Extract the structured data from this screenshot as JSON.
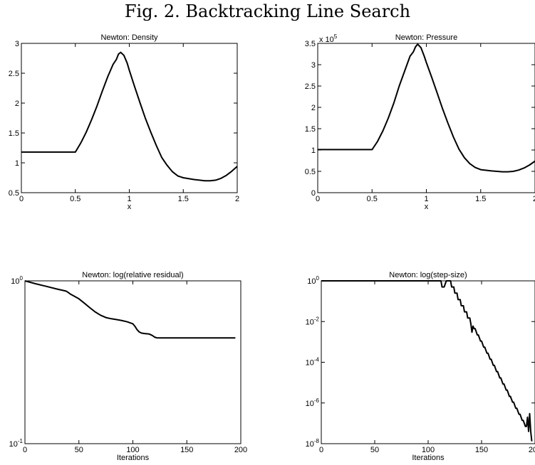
{
  "figure_title": "Fig. 2. Backtracking Line Search",
  "chart_data": [
    {
      "type": "line",
      "title": "Newton:  Density",
      "xlabel": "x",
      "ylabel": "",
      "xlim": [
        0,
        2
      ],
      "ylim": [
        0.5,
        3
      ],
      "yscale": "linear",
      "xticks": [
        0,
        0.5,
        1,
        1.5,
        2
      ],
      "xtick_labels": [
        "0",
        "0.5",
        "1",
        "1.5",
        "2"
      ],
      "yticks": [
        0.5,
        1,
        1.5,
        2,
        2.5,
        3
      ],
      "ytick_labels": [
        "0.5",
        "1",
        "1.5",
        "2",
        "2.5",
        "3"
      ],
      "series": [
        {
          "x": [
            0,
            0.25,
            0.5,
            0.55,
            0.6,
            0.65,
            0.7,
            0.75,
            0.8,
            0.85,
            0.88,
            0.9,
            0.92,
            0.95,
            0.98,
            1.0,
            1.05,
            1.1,
            1.15,
            1.2,
            1.25,
            1.3,
            1.35,
            1.4,
            1.45,
            1.5,
            1.6,
            1.7,
            1.75,
            1.8,
            1.85,
            1.9,
            1.95,
            2.0
          ],
          "y": [
            1.18,
            1.18,
            1.18,
            1.33,
            1.51,
            1.72,
            1.95,
            2.2,
            2.44,
            2.65,
            2.73,
            2.82,
            2.85,
            2.8,
            2.67,
            2.55,
            2.27,
            2.0,
            1.74,
            1.51,
            1.29,
            1.09,
            0.96,
            0.85,
            0.78,
            0.75,
            0.72,
            0.7,
            0.7,
            0.71,
            0.74,
            0.79,
            0.86,
            0.94
          ]
        }
      ]
    },
    {
      "type": "line",
      "title": "Newton:  Pressure",
      "xlabel": "x",
      "ylabel": "",
      "multiplier_label": "x 10",
      "multiplier_exponent": "5",
      "xlim": [
        0,
        2
      ],
      "ylim": [
        0,
        3.5
      ],
      "yscale": "linear",
      "xticks": [
        0,
        0.5,
        1,
        1.5,
        2
      ],
      "xtick_labels": [
        "0",
        "0.5",
        "1",
        "1.5",
        "2"
      ],
      "yticks": [
        0,
        0.5,
        1,
        1.5,
        2,
        2.5,
        3,
        3.5
      ],
      "ytick_labels": [
        "0",
        "0.5",
        "1",
        "1.5",
        "2",
        "2.5",
        "3",
        "3.5"
      ],
      "series": [
        {
          "x": [
            0,
            0.25,
            0.5,
            0.55,
            0.6,
            0.65,
            0.7,
            0.75,
            0.8,
            0.85,
            0.88,
            0.9,
            0.92,
            0.95,
            0.98,
            1.0,
            1.05,
            1.1,
            1.15,
            1.2,
            1.25,
            1.3,
            1.35,
            1.4,
            1.45,
            1.5,
            1.6,
            1.7,
            1.75,
            1.8,
            1.85,
            1.9,
            1.95,
            2.0
          ],
          "y": [
            1.01,
            1.01,
            1.01,
            1.2,
            1.45,
            1.75,
            2.1,
            2.5,
            2.85,
            3.2,
            3.3,
            3.42,
            3.48,
            3.4,
            3.2,
            3.05,
            2.7,
            2.33,
            1.96,
            1.62,
            1.3,
            1.02,
            0.82,
            0.68,
            0.59,
            0.54,
            0.51,
            0.49,
            0.49,
            0.5,
            0.53,
            0.58,
            0.65,
            0.74
          ]
        }
      ]
    },
    {
      "type": "line",
      "title": "Newton:  log(relative residual)",
      "xlabel": "Iterations",
      "ylabel": "",
      "xlim": [
        0,
        200
      ],
      "ylim": [
        0.1,
        1
      ],
      "yscale": "log",
      "xticks": [
        0,
        50,
        100,
        150,
        200
      ],
      "xtick_labels": [
        "0",
        "50",
        "100",
        "150",
        "200"
      ],
      "yticks": [
        0.1,
        1
      ],
      "ytick_labels": [
        {
          "base": "10",
          "exp": "-1"
        },
        {
          "base": "10",
          "exp": "0"
        }
      ],
      "series": [
        {
          "x": [
            0,
            10,
            20,
            30,
            38,
            40,
            42,
            45,
            50,
            55,
            60,
            65,
            70,
            75,
            80,
            85,
            90,
            95,
            100,
            102,
            104,
            106,
            108,
            110,
            115,
            118,
            120,
            122,
            125,
            150,
            175,
            195
          ],
          "y": [
            1.0,
            0.96,
            0.925,
            0.89,
            0.865,
            0.85,
            0.83,
            0.81,
            0.775,
            0.73,
            0.685,
            0.645,
            0.615,
            0.595,
            0.585,
            0.578,
            0.57,
            0.56,
            0.545,
            0.525,
            0.5,
            0.485,
            0.478,
            0.475,
            0.472,
            0.462,
            0.452,
            0.447,
            0.446,
            0.446,
            0.446,
            0.446
          ]
        }
      ]
    },
    {
      "type": "line",
      "title": "Newton:  log(step-size)",
      "xlabel": "Iterations",
      "ylabel": "",
      "xlim": [
        0,
        200
      ],
      "ylim": [
        1e-08,
        1
      ],
      "yscale": "log",
      "xticks": [
        0,
        50,
        100,
        150,
        200
      ],
      "xtick_labels": [
        "0",
        "50",
        "100",
        "150",
        "200"
      ],
      "yticks": [
        1e-08,
        1e-06,
        0.0001,
        0.01,
        1
      ],
      "ytick_labels": [
        {
          "base": "10",
          "exp": "-8"
        },
        {
          "base": "10",
          "exp": "-6"
        },
        {
          "base": "10",
          "exp": "-4"
        },
        {
          "base": "10",
          "exp": "-2"
        },
        {
          "base": "10",
          "exp": "0"
        }
      ],
      "series": [
        {
          "x": [
            0,
            110,
            112,
            113,
            115,
            117,
            118,
            120,
            121,
            122,
            124,
            125,
            127,
            128,
            130,
            131,
            133,
            134,
            136,
            137,
            139,
            140,
            141,
            142,
            143,
            144,
            146,
            147,
            149,
            150,
            152,
            153,
            155,
            156,
            158,
            159,
            161,
            162,
            164,
            165,
            167,
            168,
            170,
            171,
            173,
            174,
            176,
            177,
            179,
            180,
            182,
            183,
            185,
            186,
            188,
            189,
            191,
            192,
            193,
            194,
            195,
            196,
            197
          ],
          "y": [
            1,
            1,
            1,
            0.5,
            0.5,
            1,
            1,
            1,
            1,
            0.5,
            0.5,
            0.25,
            0.25,
            0.12,
            0.12,
            0.06,
            0.06,
            0.03,
            0.03,
            0.015,
            0.015,
            0.0075,
            0.003,
            0.006,
            0.0045,
            0.0045,
            0.0022,
            0.0022,
            0.0011,
            0.0011,
            0.00055,
            0.00055,
            0.00028,
            0.00028,
            0.00014,
            0.00014,
            7e-05,
            7e-05,
            3.5e-05,
            3.5e-05,
            1.7e-05,
            1.7e-05,
            8.5e-06,
            8.5e-06,
            4.3e-06,
            4.3e-06,
            2.1e-06,
            2.1e-06,
            1.1e-06,
            1.1e-06,
            5.5e-07,
            5.5e-07,
            2.8e-07,
            2.8e-07,
            1.4e-07,
            1.4e-07,
            7e-08,
            7e-08,
            2e-07,
            4e-08,
            3e-07,
            4e-08,
            1.3e-08
          ]
        }
      ]
    }
  ]
}
